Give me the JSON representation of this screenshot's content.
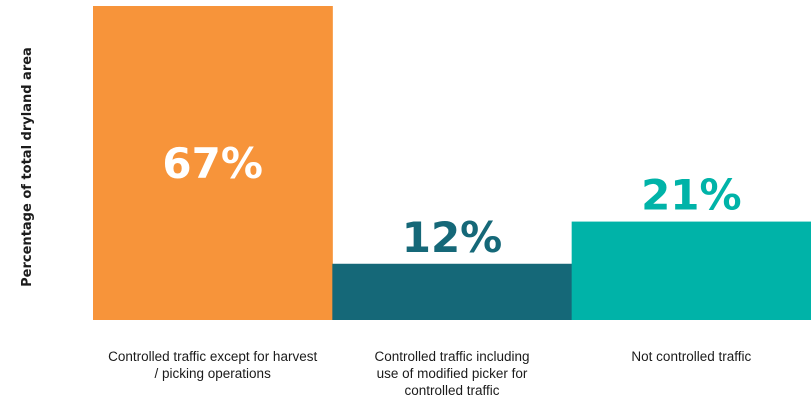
{
  "chart_data": {
    "type": "bar",
    "ylabel": "Percentage of total dryland area",
    "categories": [
      [
        "Controlled traffic except for harvest",
        "/ picking operations"
      ],
      [
        "Controlled traffic including",
        "use of modified picker for",
        "controlled traffic"
      ],
      [
        "Not controlled traffic"
      ]
    ],
    "values": [
      67,
      12,
      21
    ],
    "data_labels": [
      "67%",
      "12%",
      "21%"
    ],
    "colors": [
      "#f7943a",
      "#156878",
      "#00b3a8"
    ],
    "label_colors": [
      "#ffffff",
      "#156878",
      "#00b3a8"
    ],
    "ylim": [
      0,
      67
    ],
    "grid": false,
    "legend": "none"
  }
}
